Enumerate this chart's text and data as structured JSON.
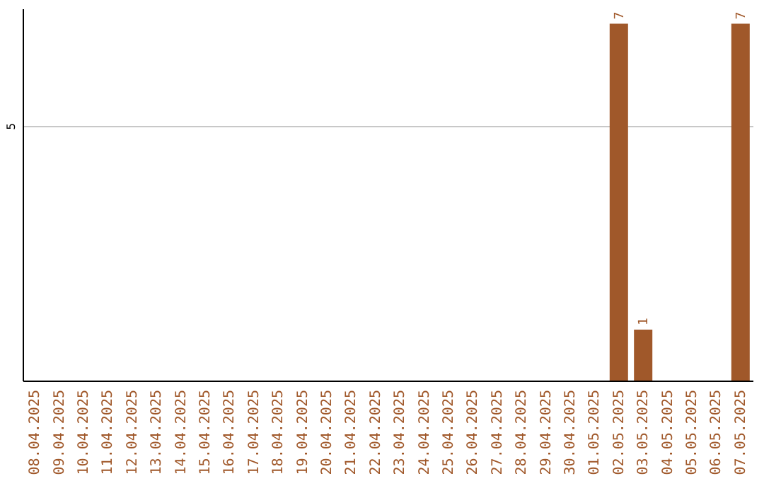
{
  "chart_data": {
    "type": "bar",
    "categories": [
      "08.04.2025",
      "09.04.2025",
      "10.04.2025",
      "11.04.2025",
      "12.04.2025",
      "13.04.2025",
      "14.04.2025",
      "15.04.2025",
      "16.04.2025",
      "17.04.2025",
      "18.04.2025",
      "19.04.2025",
      "20.04.2025",
      "21.04.2025",
      "22.04.2025",
      "23.04.2025",
      "24.04.2025",
      "25.04.2025",
      "26.04.2025",
      "27.04.2025",
      "28.04.2025",
      "29.04.2025",
      "30.04.2025",
      "01.05.2025",
      "02.05.2025",
      "03.05.2025",
      "04.05.2025",
      "05.05.2025",
      "06.05.2025",
      "07.05.2025"
    ],
    "values": [
      null,
      null,
      null,
      null,
      null,
      null,
      null,
      null,
      null,
      null,
      null,
      null,
      null,
      null,
      null,
      null,
      null,
      null,
      null,
      null,
      null,
      null,
      null,
      null,
      7,
      1,
      null,
      null,
      null,
      7
    ],
    "data_labels": true,
    "color": "#a0582a",
    "ylim": [
      0,
      7.3
    ],
    "yticks": [
      5
    ],
    "grid": "y"
  }
}
